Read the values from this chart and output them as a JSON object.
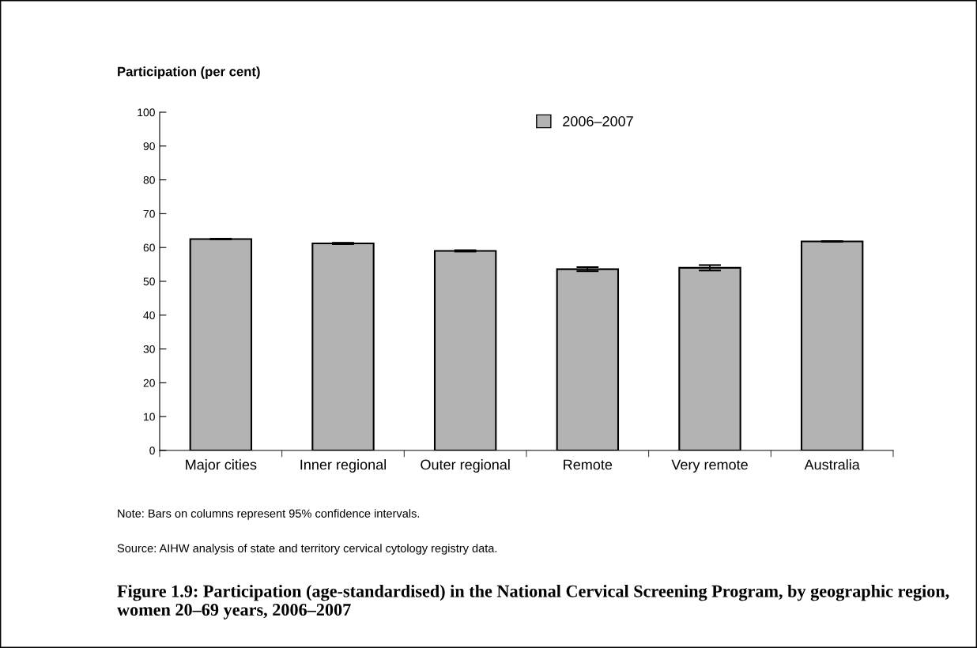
{
  "chart_data": {
    "type": "bar",
    "title": "Figure 1.9: Participation (age-standardised) in the National Cervical Screening Program, by geographic region, women 20–69 years, 2006–2007",
    "ylabel": "Participation (per cent)",
    "categories": [
      "Major cities",
      "Inner regional",
      "Outer regional",
      "Remote",
      "Very remote",
      "Australia"
    ],
    "series": [
      {
        "name": "2006–2007",
        "color": "#b3b3b3",
        "values": [
          62.5,
          61.2,
          59.0,
          53.6,
          54.0,
          61.8
        ],
        "errors": [
          0.1,
          0.2,
          0.2,
          0.6,
          0.8,
          0.1
        ]
      }
    ],
    "ylim": [
      0,
      100
    ],
    "yticks": [
      0,
      10,
      20,
      30,
      40,
      50,
      60,
      70,
      80,
      90,
      100
    ],
    "grid": false,
    "legend": "top",
    "annotations": [
      "Note: Bars on columns represent 95% confidence intervals.",
      "Source: AIHW analysis of state and territory cervical cytology registry data."
    ]
  }
}
